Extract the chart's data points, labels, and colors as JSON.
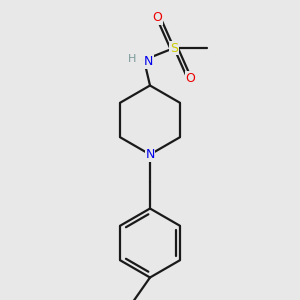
{
  "bg_color": "#e8e8e8",
  "bond_color": "#1a1a1a",
  "N_color": "#0000ee",
  "S_color": "#cccc00",
  "O_color": "#ee0000",
  "H_color": "#7a9a9a",
  "line_width": 1.6,
  "figsize": [
    3.0,
    3.0
  ],
  "dpi": 100,
  "xlim": [
    0.0,
    1.0
  ],
  "ylim": [
    0.0,
    1.0
  ]
}
